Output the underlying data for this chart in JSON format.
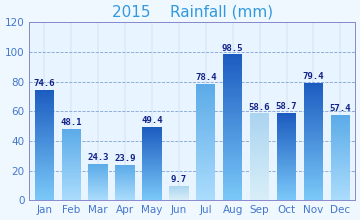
{
  "title": "2015    Rainfall (mm)",
  "categories": [
    "Jan",
    "Feb",
    "Mar",
    "Apr",
    "May",
    "Jun",
    "Jul",
    "Aug",
    "Sep",
    "Oct",
    "Nov",
    "Dec"
  ],
  "values": [
    74.6,
    48.1,
    24.3,
    23.9,
    49.4,
    9.7,
    78.4,
    98.5,
    58.6,
    58.7,
    79.4,
    57.4
  ],
  "ylim": [
    0,
    120
  ],
  "yticks": [
    0,
    20,
    40,
    60,
    80,
    100,
    120
  ],
  "bar_top_colors": [
    "#1a5abf",
    "#5aaae8",
    "#5aaae8",
    "#5aaae8",
    "#1a5abf",
    "#aad4f0",
    "#5aaae8",
    "#1a5abf",
    "#aad4f0",
    "#1a5abf",
    "#1a5abf",
    "#5aaae8"
  ],
  "bar_bottom_colors": [
    "#7ac8f8",
    "#aadcfc",
    "#aadcfc",
    "#aadcfc",
    "#7ac8f8",
    "#d8eef8",
    "#aadcfc",
    "#7ac8f8",
    "#d8eef8",
    "#7ac8f8",
    "#7ac8f8",
    "#aadcfc"
  ],
  "fig_bg_color": "#f0f8ff",
  "plot_bg_color": "#e8f4ff",
  "outer_border_color": "#8888cc",
  "title_color": "#3399dd",
  "axis_label_color": "#4477cc",
  "value_label_color": "#112288",
  "grid_color": "#7799cc",
  "title_fontsize": 11,
  "tick_fontsize": 7.5,
  "value_fontsize": 6.5,
  "bar_width": 0.72
}
